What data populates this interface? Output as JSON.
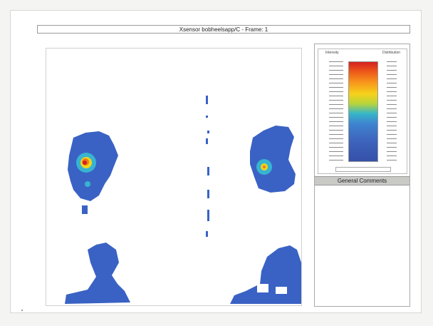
{
  "window": {
    "title": "Xsensor bobheelsapp/C - Frame: 1"
  },
  "plot": {
    "colors": {
      "blue": "#3a62c4",
      "cyan": "#38b4d0",
      "yellow": "#f2d41a",
      "orange": "#ef7a1a",
      "red": "#d62020"
    }
  },
  "legend": {
    "left_header": "Intensity",
    "right_header": "Distribution",
    "footer": "",
    "colors": [
      "#d42020",
      "#ee5a1a",
      "#f7931c",
      "#f6d21a",
      "#b8d43a",
      "#35b6c8",
      "#3f84d0",
      "#3d63bc",
      "#3650a8"
    ]
  },
  "comments": {
    "header": "General Comments",
    "body": ""
  }
}
